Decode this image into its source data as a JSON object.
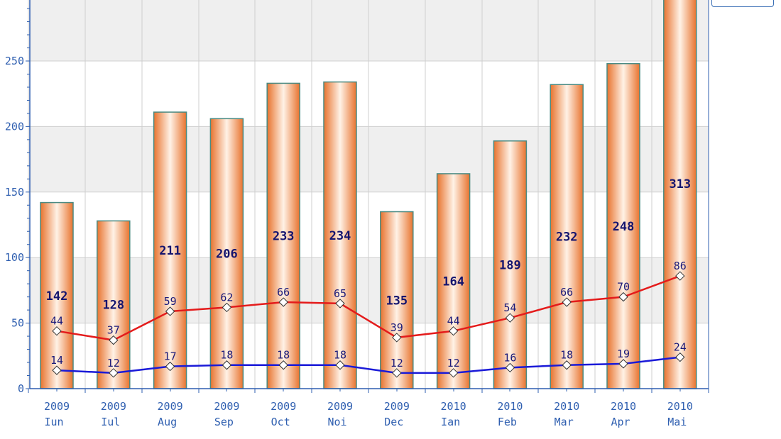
{
  "chart_data": {
    "type": "bar",
    "categories": [
      [
        "2009",
        "Iun"
      ],
      [
        "2009",
        "Iul"
      ],
      [
        "2009",
        "Aug"
      ],
      [
        "2009",
        "Sep"
      ],
      [
        "2009",
        "Oct"
      ],
      [
        "2009",
        "Noi"
      ],
      [
        "2009",
        "Dec"
      ],
      [
        "2010",
        "Ian"
      ],
      [
        "2010",
        "Feb"
      ],
      [
        "2010",
        "Mar"
      ],
      [
        "2010",
        "Apr"
      ],
      [
        "2010",
        "Mai"
      ]
    ],
    "ylim": [
      0,
      300
    ],
    "yticks": [
      0,
      50,
      100,
      150,
      200,
      250
    ],
    "series": [
      {
        "type": "bar",
        "values": [
          142,
          128,
          211,
          206,
          233,
          234,
          135,
          164,
          189,
          232,
          248,
          313
        ]
      },
      {
        "type": "line",
        "values": [
          44,
          37,
          59,
          62,
          66,
          65,
          39,
          44,
          54,
          66,
          70,
          86
        ]
      },
      {
        "type": "line",
        "values": [
          14,
          12,
          17,
          18,
          18,
          18,
          12,
          12,
          16,
          18,
          19,
          24
        ]
      }
    ],
    "colors": {
      "bar_edge": "#e8732e",
      "bar_mid": "#fff2e6",
      "bar_outline": "#4a8a82",
      "line_1": "#e41b1b",
      "line_2": "#1a1ad8",
      "band": "#efefef",
      "grid": "#cfcfcf",
      "axis": "#2f5fb0"
    },
    "legend": "top-right",
    "grid": true
  }
}
